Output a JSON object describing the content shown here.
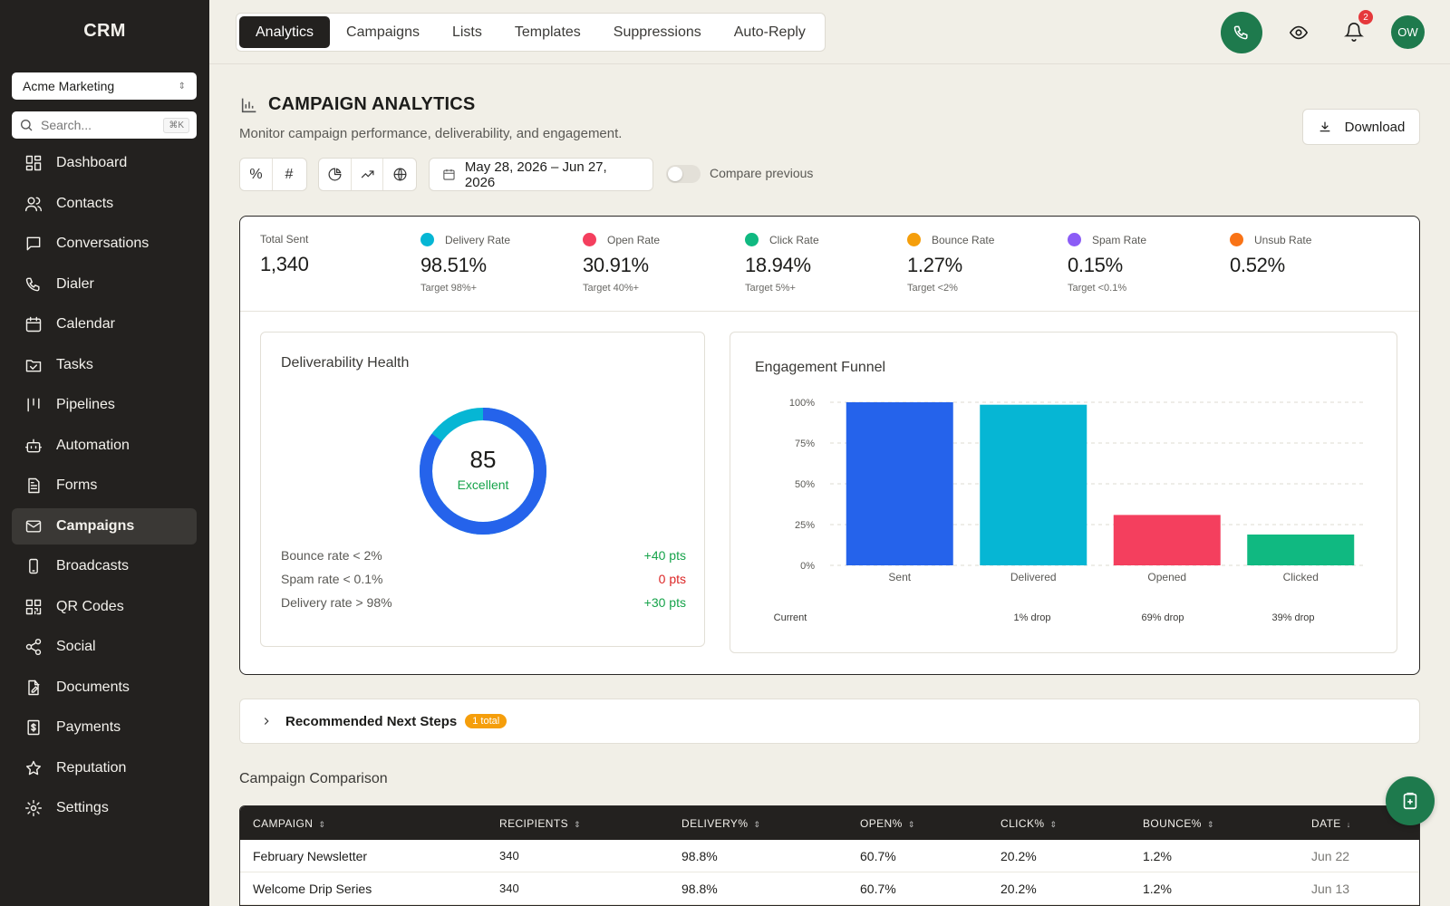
{
  "sidebar": {
    "brand": "CRM",
    "org": "Acme Marketing",
    "search_placeholder": "Search...",
    "search_shortcut": "⌘K",
    "items": [
      {
        "label": "Dashboard",
        "icon": "dashboard-icon"
      },
      {
        "label": "Contacts",
        "icon": "contacts-icon"
      },
      {
        "label": "Conversations",
        "icon": "chat-icon"
      },
      {
        "label": "Dialer",
        "icon": "phone-icon"
      },
      {
        "label": "Calendar",
        "icon": "calendar-icon"
      },
      {
        "label": "Tasks",
        "icon": "folder-check-icon"
      },
      {
        "label": "Pipelines",
        "icon": "pipeline-icon"
      },
      {
        "label": "Automation",
        "icon": "bot-icon"
      },
      {
        "label": "Forms",
        "icon": "form-icon"
      },
      {
        "label": "Campaigns",
        "icon": "mail-icon",
        "active": true
      },
      {
        "label": "Broadcasts",
        "icon": "mobile-icon"
      },
      {
        "label": "QR Codes",
        "icon": "qr-icon"
      },
      {
        "label": "Social",
        "icon": "share-icon"
      },
      {
        "label": "Documents",
        "icon": "document-edit-icon"
      },
      {
        "label": "Payments",
        "icon": "receipt-icon"
      },
      {
        "label": "Reputation",
        "icon": "star-icon"
      },
      {
        "label": "Settings",
        "icon": "gear-icon"
      }
    ]
  },
  "topbar": {
    "tabs": [
      "Analytics",
      "Campaigns",
      "Lists",
      "Templates",
      "Suppressions",
      "Auto-Reply"
    ],
    "active_tab": "Analytics",
    "notifications": "2",
    "avatar": "OW"
  },
  "header": {
    "title": "CAMPAIGN ANALYTICS",
    "subtitle": "Monitor campaign performance, deliverability, and engagement.",
    "download": "Download",
    "date_range": "May 28, 2026 – Jun 27, 2026",
    "compare": "Compare previous",
    "tools": [
      "%",
      "#"
    ]
  },
  "kpis": [
    {
      "label": "Total Sent",
      "value": "1,340",
      "target": "",
      "color": ""
    },
    {
      "label": "Delivery Rate",
      "value": "98.51%",
      "target": "Target 98%+",
      "color": "#06b6d4"
    },
    {
      "label": "Open Rate",
      "value": "30.91%",
      "target": "Target 40%+",
      "color": "#f43f5e"
    },
    {
      "label": "Click Rate",
      "value": "18.94%",
      "target": "Target 5%+",
      "color": "#10b981"
    },
    {
      "label": "Bounce Rate",
      "value": "1.27%",
      "target": "Target <2%",
      "color": "#f59e0b"
    },
    {
      "label": "Spam Rate",
      "value": "0.15%",
      "target": "Target <0.1%",
      "color": "#8b5cf6"
    },
    {
      "label": "Unsub Rate",
      "value": "0.52%",
      "target": "",
      "color": "#f97316"
    }
  ],
  "health": {
    "title": "Deliverability Health",
    "score": "85",
    "score_fraction": 0.85,
    "grade": "Excellent",
    "rows": [
      {
        "label": "Bounce rate < 2%",
        "pts": "+40 pts",
        "color": "#16a34a"
      },
      {
        "label": "Spam rate < 0.1%",
        "pts": "0 pts",
        "color": "#dc2626"
      },
      {
        "label": "Delivery rate > 98%",
        "pts": "+30 pts",
        "color": "#16a34a"
      }
    ]
  },
  "chart_data": {
    "type": "bar",
    "title": "Engagement Funnel",
    "categories": [
      "Sent",
      "Delivered",
      "Opened",
      "Clicked"
    ],
    "values": [
      100,
      98.5,
      30.9,
      18.9
    ],
    "colors": [
      "#2563eb",
      "#06b6d4",
      "#f43f5e",
      "#10b981"
    ],
    "yticks": [
      "100%",
      "75%",
      "50%",
      "25%",
      "0%"
    ],
    "ylim": [
      0,
      100
    ],
    "grid": true,
    "footer": [
      "Current",
      "1% drop",
      "69% drop",
      "39% drop"
    ]
  },
  "recommended": {
    "title": "Recommended Next Steps",
    "badge": "1 total"
  },
  "comparison": {
    "title": "Campaign Comparison",
    "columns": [
      "CAMPAIGN",
      "RECIPIENTS",
      "DELIVERY%",
      "OPEN%",
      "CLICK%",
      "BOUNCE%",
      "DATE"
    ],
    "rows": [
      [
        "February Newsletter",
        "340",
        "98.8%",
        "60.7%",
        "20.2%",
        "1.2%",
        "Jun 22"
      ],
      [
        "Welcome Drip Series",
        "340",
        "98.8%",
        "60.7%",
        "20.2%",
        "1.2%",
        "Jun 13"
      ]
    ]
  }
}
